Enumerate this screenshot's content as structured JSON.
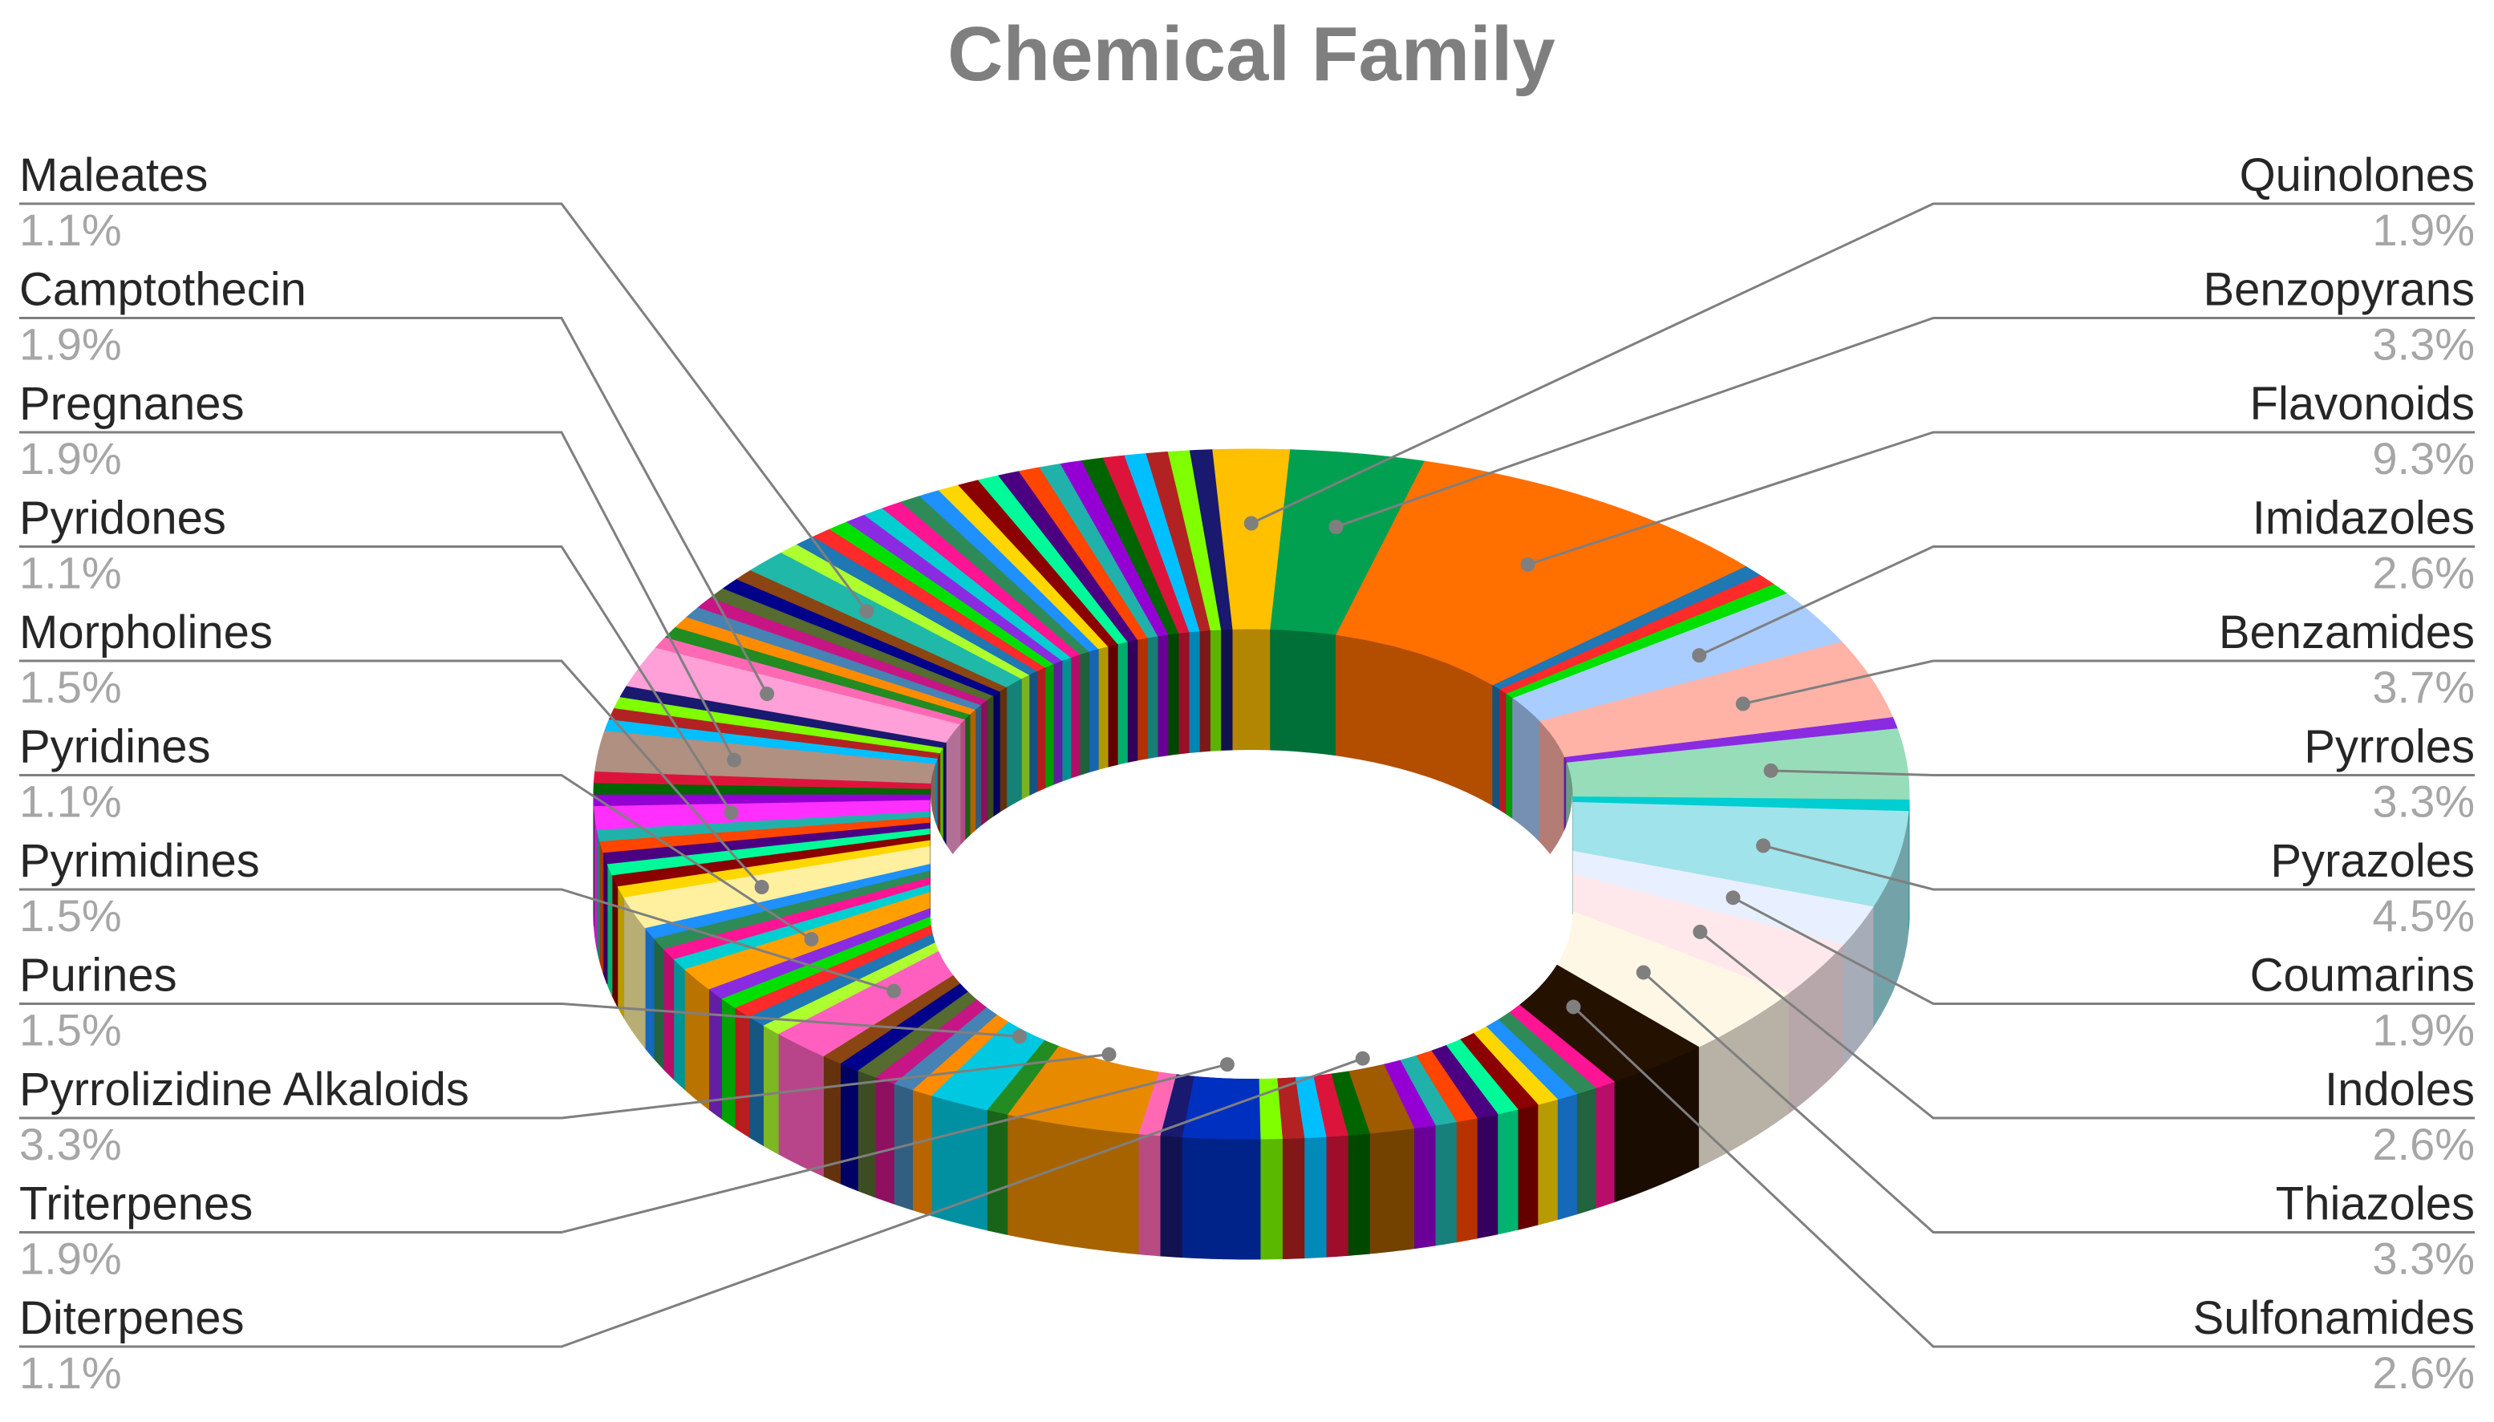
{
  "chart_data": {
    "type": "pie",
    "style": "3d-doughnut",
    "title": "Chemical Family",
    "legend": "none",
    "labeled_slices": [
      {
        "name": "Quinolones",
        "value": 1.9,
        "color": "#FFC000"
      },
      {
        "name": "Benzopyrans",
        "value": 3.3,
        "color": "#00A050"
      },
      {
        "name": "Flavonoids",
        "value": 9.3,
        "color": "#FF7000"
      },
      {
        "name": "Imidazoles",
        "value": 2.6,
        "color": "#A9CDFF"
      },
      {
        "name": "Benzamides",
        "value": 3.7,
        "color": "#FFB3A7"
      },
      {
        "name": "Pyrroles",
        "value": 3.3,
        "color": "#97DDB9"
      },
      {
        "name": "Pyrazoles",
        "value": 4.5,
        "color": "#A0E3EA"
      },
      {
        "name": "Coumarins",
        "value": 1.9,
        "color": "#E8F0FF"
      },
      {
        "name": "Indoles",
        "value": 2.6,
        "color": "#FFE8EC"
      },
      {
        "name": "Thiazoles",
        "value": 3.3,
        "color": "#FFF7E6"
      },
      {
        "name": "Sulfonamides",
        "value": 2.6,
        "color": "#251100"
      },
      {
        "name": "Diterpenes",
        "value": 1.1,
        "color": "#A05A00"
      },
      {
        "name": "Triterpenes",
        "value": 1.9,
        "color": "#0030C0"
      },
      {
        "name": "Pyrrolizidine Alkaloids",
        "value": 3.3,
        "color": "#E88A00"
      },
      {
        "name": "Purines",
        "value": 1.5,
        "color": "#00C8E0"
      },
      {
        "name": "Pyrimidines",
        "value": 1.5,
        "color": "#FF60C0"
      },
      {
        "name": "Pyridines",
        "value": 1.1,
        "color": "#FFA000"
      },
      {
        "name": "Morpholines",
        "value": 1.5,
        "color": "#FFF0A0"
      },
      {
        "name": "Pyridones",
        "value": 1.1,
        "color": "#FF30FF"
      },
      {
        "name": "Pregnanes",
        "value": 1.9,
        "color": "#B09080"
      },
      {
        "name": "Camptothecin",
        "value": 1.9,
        "color": "#FFA0D8"
      },
      {
        "name": "Maleates",
        "value": 1.1,
        "color": "#20B8A8"
      }
    ],
    "left_labels": [
      {
        "name": "Maleates",
        "pct": "1.1%"
      },
      {
        "name": "Camptothecin",
        "pct": "1.9%"
      },
      {
        "name": "Pregnanes",
        "pct": "1.9%"
      },
      {
        "name": "Pyridones",
        "pct": "1.1%"
      },
      {
        "name": "Morpholines",
        "pct": "1.5%"
      },
      {
        "name": "Pyridines",
        "pct": "1.1%"
      },
      {
        "name": "Pyrimidines",
        "pct": "1.5%"
      },
      {
        "name": "Purines",
        "pct": "1.5%"
      },
      {
        "name": "Pyrrolizidine Alkaloids",
        "pct": "3.3%"
      },
      {
        "name": "Triterpenes",
        "pct": "1.9%"
      },
      {
        "name": "Diterpenes",
        "pct": "1.1%"
      }
    ],
    "right_labels": [
      {
        "name": "Quinolones",
        "pct": "1.9%"
      },
      {
        "name": "Benzopyrans",
        "pct": "3.3%"
      },
      {
        "name": "Flavonoids",
        "pct": "9.3%"
      },
      {
        "name": "Imidazoles",
        "pct": "2.6%"
      },
      {
        "name": "Benzamides",
        "pct": "3.7%"
      },
      {
        "name": "Pyrroles",
        "pct": "3.3%"
      },
      {
        "name": "Pyrazoles",
        "pct": "4.5%"
      },
      {
        "name": "Coumarins",
        "pct": "1.9%"
      },
      {
        "name": "Indoles",
        "pct": "2.6%"
      },
      {
        "name": "Thiazoles",
        "pct": "3.3%"
      },
      {
        "name": "Sulfonamides",
        "pct": "2.6%"
      }
    ]
  }
}
